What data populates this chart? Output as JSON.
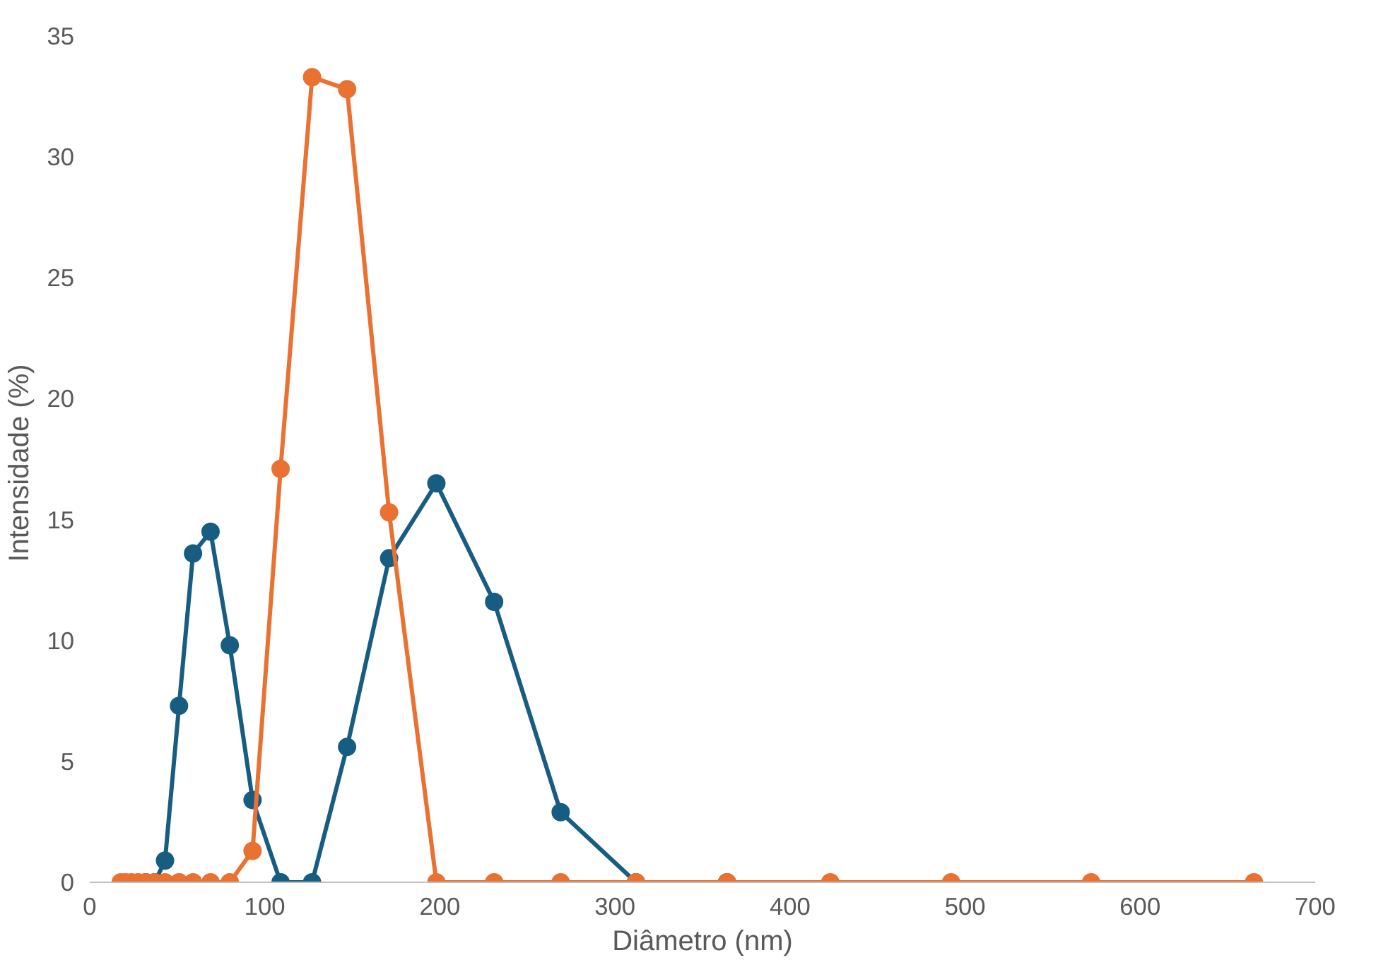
{
  "chart_data": {
    "type": "line",
    "xlabel": "Diâmetro (nm)",
    "ylabel": "Intensidade  (%)",
    "x": [
      17.7,
      20.5,
      23.8,
      27.6,
      32,
      37.1,
      43,
      51,
      59,
      69,
      80,
      93,
      109,
      127,
      147,
      171,
      198,
      231,
      269,
      312,
      364,
      423,
      492,
      572,
      665
    ],
    "series": [
      {
        "color": "#175d82",
        "x": [
          32,
          37.1,
          43,
          51,
          59,
          69,
          80,
          93,
          109,
          127,
          147,
          171,
          198,
          231,
          269,
          312,
          364
        ],
        "values": [
          0,
          0,
          0.9,
          7.3,
          13.6,
          14.5,
          9.8,
          3.4,
          0,
          0,
          5.6,
          13.4,
          16.5,
          11.6,
          2.9,
          0,
          0
        ]
      },
      {
        "color": "#e97132",
        "values": [
          0,
          0,
          0,
          0,
          0,
          0,
          0,
          0,
          0,
          0,
          0,
          1.3,
          17.1,
          33.3,
          32.8,
          15.3,
          0,
          0,
          0,
          0,
          0,
          0,
          0,
          0,
          0
        ]
      }
    ],
    "xlim": [
      0,
      700
    ],
    "xticks": [
      0,
      100,
      200,
      300,
      400,
      500,
      600,
      700
    ],
    "ylim": [
      0,
      35
    ],
    "yticks": [
      0,
      5,
      10,
      15,
      20,
      25,
      30,
      35
    ],
    "grid": false,
    "marker": "circle",
    "line_style": "solid"
  }
}
